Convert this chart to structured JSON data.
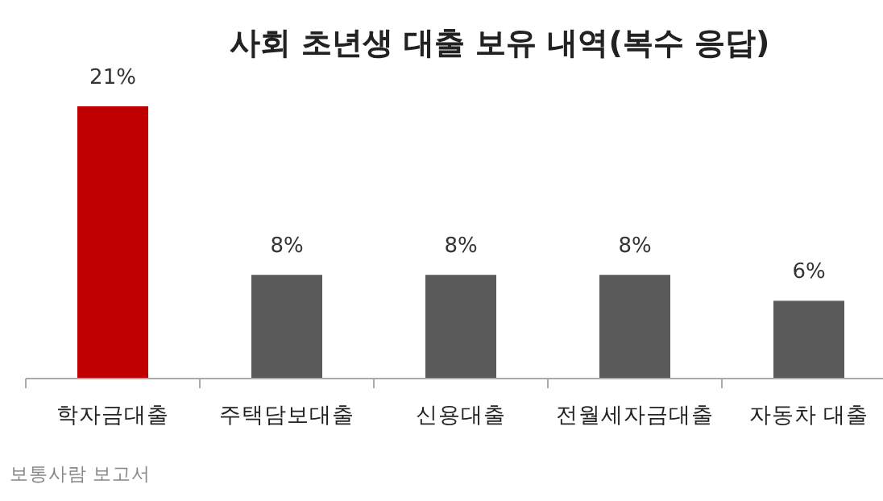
{
  "chart_data": {
    "type": "bar",
    "title": "사회 초년생 대출 보유 내역(복수 응답)",
    "categories": [
      "학자금대출",
      "주택담보대출",
      "신용대출",
      "전월세자금대출",
      "자동차 대출"
    ],
    "values": [
      21,
      8,
      8,
      8,
      6
    ],
    "colors": [
      "#c00000",
      "#5a5a5a",
      "#5a5a5a",
      "#5a5a5a",
      "#5a5a5a"
    ],
    "value_labels": [
      "21%",
      "8%",
      "8%",
      "8%",
      "6%"
    ],
    "annotations": [
      "보통사람 보고서"
    ]
  }
}
